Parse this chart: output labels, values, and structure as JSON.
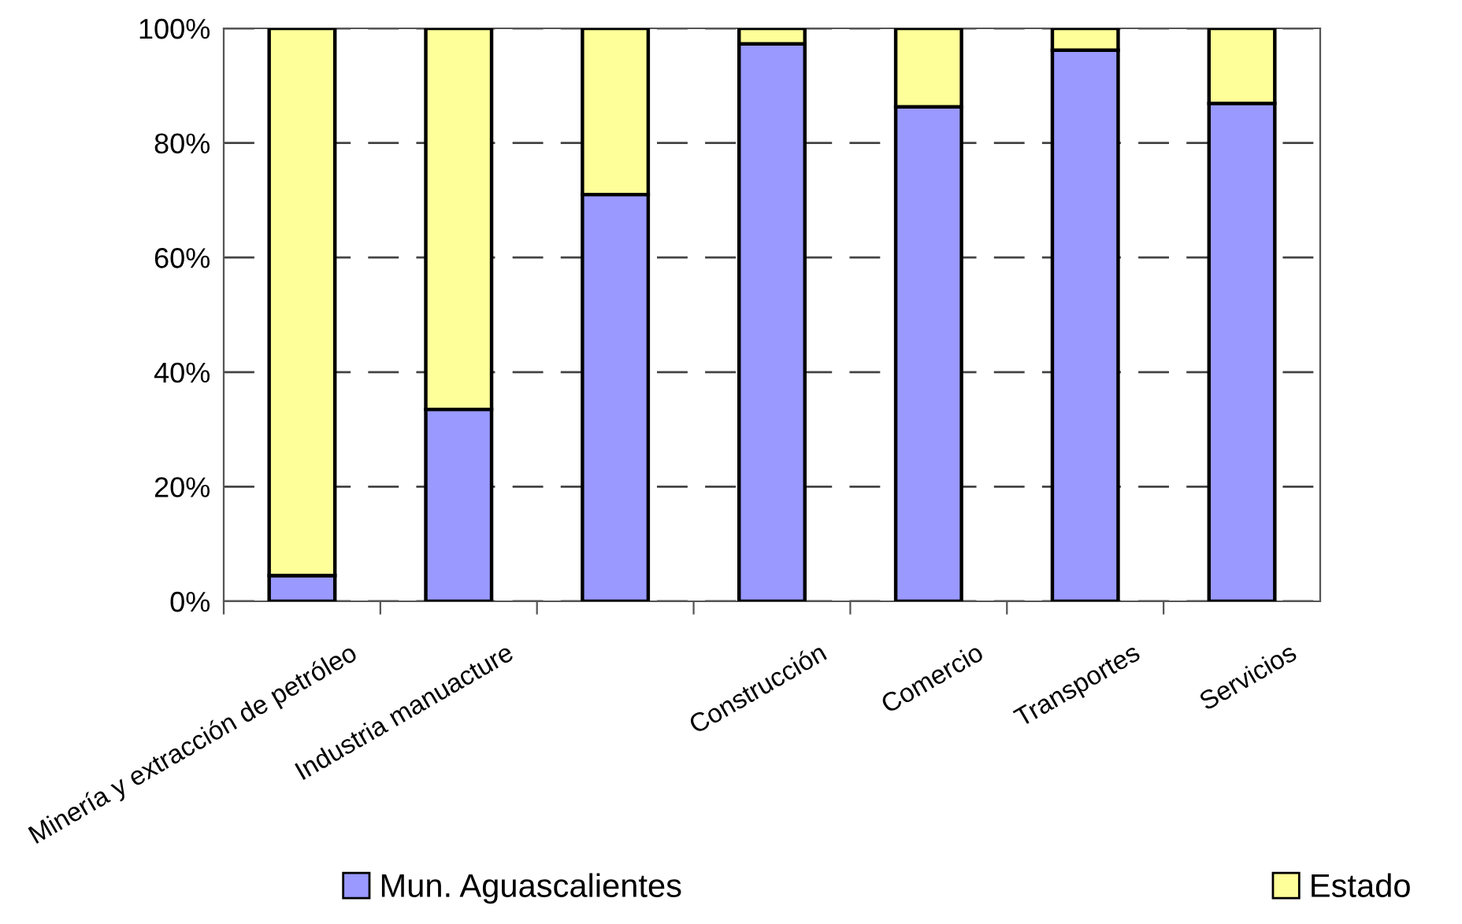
{
  "chart_data": {
    "type": "bar",
    "stacked": true,
    "categories": [
      "Minería y extracción de petróleo",
      "Industria manuacture",
      null,
      "Construcción",
      "Comercio",
      "Transportes",
      "Servicios"
    ],
    "series": [
      {
        "name": "Mun. Aguascalientes",
        "color": "#9999ff",
        "values": [
          4.5,
          33.5,
          71,
          97.3,
          86.3,
          96.2,
          86.9
        ]
      },
      {
        "name": "Estado",
        "color": "#ffff99",
        "values": [
          95.5,
          66.5,
          29,
          2.7,
          13.7,
          3.8,
          13.1
        ]
      }
    ],
    "ylim": [
      0,
      100
    ],
    "yticks": [
      {
        "value": 0,
        "label": "0%"
      },
      {
        "value": 20,
        "label": "20%"
      },
      {
        "value": 40,
        "label": "40%"
      },
      {
        "value": 60,
        "label": "60%"
      },
      {
        "value": 80,
        "label": "80%"
      },
      {
        "value": 100,
        "label": "100%"
      }
    ],
    "grid": "y",
    "line_style": "dashed",
    "legend": "bottom"
  }
}
